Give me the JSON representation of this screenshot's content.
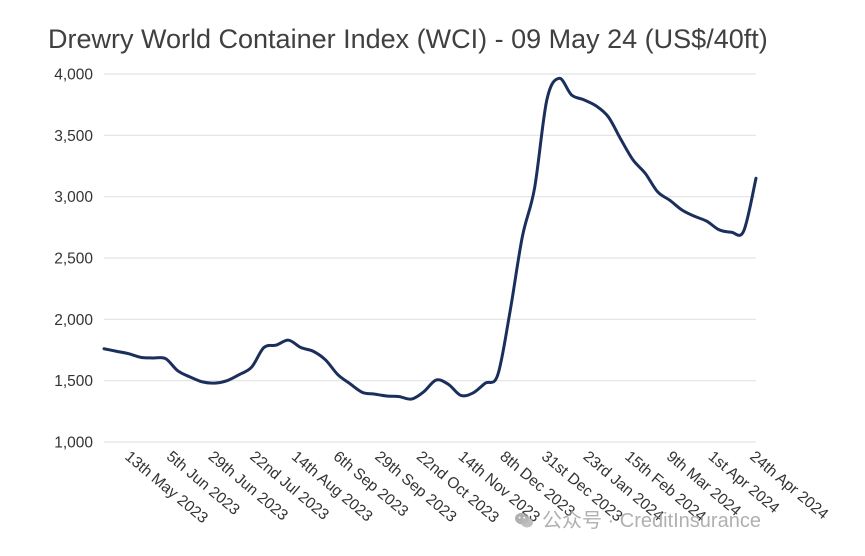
{
  "chart_data": {
    "type": "line",
    "title": "Drewry World Container Index (WCI) - 09 May 24 (US$/40ft)",
    "xlabel": "",
    "ylabel": "",
    "ylim": [
      1000,
      4000
    ],
    "y_ticks": [
      1000,
      1500,
      2000,
      2500,
      3000,
      3500,
      4000
    ],
    "y_tick_labels": [
      "1,000",
      "1,500",
      "2,000",
      "2,500",
      "3,000",
      "3,500",
      "4,000"
    ],
    "x_tick_labels": [
      "13th May 2023",
      "5th Jun 2023",
      "29th Jun 2023",
      "22nd Jul 2023",
      "14th Aug 2023",
      "6th Sep 2023",
      "29th Sep 2023",
      "22nd Oct 2023",
      "14th Nov 2023",
      "8th Dec 2023",
      "31st Dec 2023",
      "23rd Jan 2024",
      "15th Feb 2024",
      "9th Mar 2024",
      "1st Apr 2024",
      "24th Apr 2024"
    ],
    "grid": true,
    "series_color": "#1b2f5c",
    "series": [
      {
        "x": [
          "2023-05-04",
          "2023-05-11",
          "2023-05-18",
          "2023-05-25",
          "2023-06-01",
          "2023-06-08",
          "2023-06-15",
          "2023-06-22",
          "2023-06-29",
          "2023-07-06",
          "2023-07-13",
          "2023-07-20",
          "2023-07-27",
          "2023-08-03",
          "2023-08-10",
          "2023-08-17",
          "2023-08-24",
          "2023-08-31",
          "2023-09-07",
          "2023-09-14",
          "2023-09-21",
          "2023-09-28",
          "2023-10-05",
          "2023-10-12",
          "2023-10-19",
          "2023-10-26",
          "2023-11-02",
          "2023-11-09",
          "2023-11-16",
          "2023-11-23",
          "2023-11-30",
          "2023-12-07",
          "2023-12-14",
          "2023-12-21",
          "2023-12-28",
          "2024-01-04",
          "2024-01-11",
          "2024-01-18",
          "2024-01-25",
          "2024-02-01",
          "2024-02-08",
          "2024-02-15",
          "2024-02-22",
          "2024-02-29",
          "2024-03-07",
          "2024-03-14",
          "2024-03-21",
          "2024-03-28",
          "2024-04-04",
          "2024-04-11",
          "2024-04-18",
          "2024-04-25",
          "2024-05-02",
          "2024-05-09"
        ],
        "values": [
          1760,
          1740,
          1720,
          1690,
          1685,
          1680,
          1580,
          1530,
          1490,
          1480,
          1500,
          1550,
          1610,
          1770,
          1790,
          1830,
          1770,
          1740,
          1670,
          1550,
          1475,
          1405,
          1390,
          1375,
          1370,
          1350,
          1410,
          1505,
          1470,
          1380,
          1400,
          1480,
          1545,
          2060,
          2670,
          3070,
          3790,
          3965,
          3830,
          3790,
          3740,
          3650,
          3470,
          3300,
          3190,
          3040,
          2970,
          2890,
          2840,
          2800,
          2730,
          2710,
          2720,
          3150
        ]
      }
    ]
  },
  "watermark": {
    "text": "公众号 · CreditInsurance"
  }
}
